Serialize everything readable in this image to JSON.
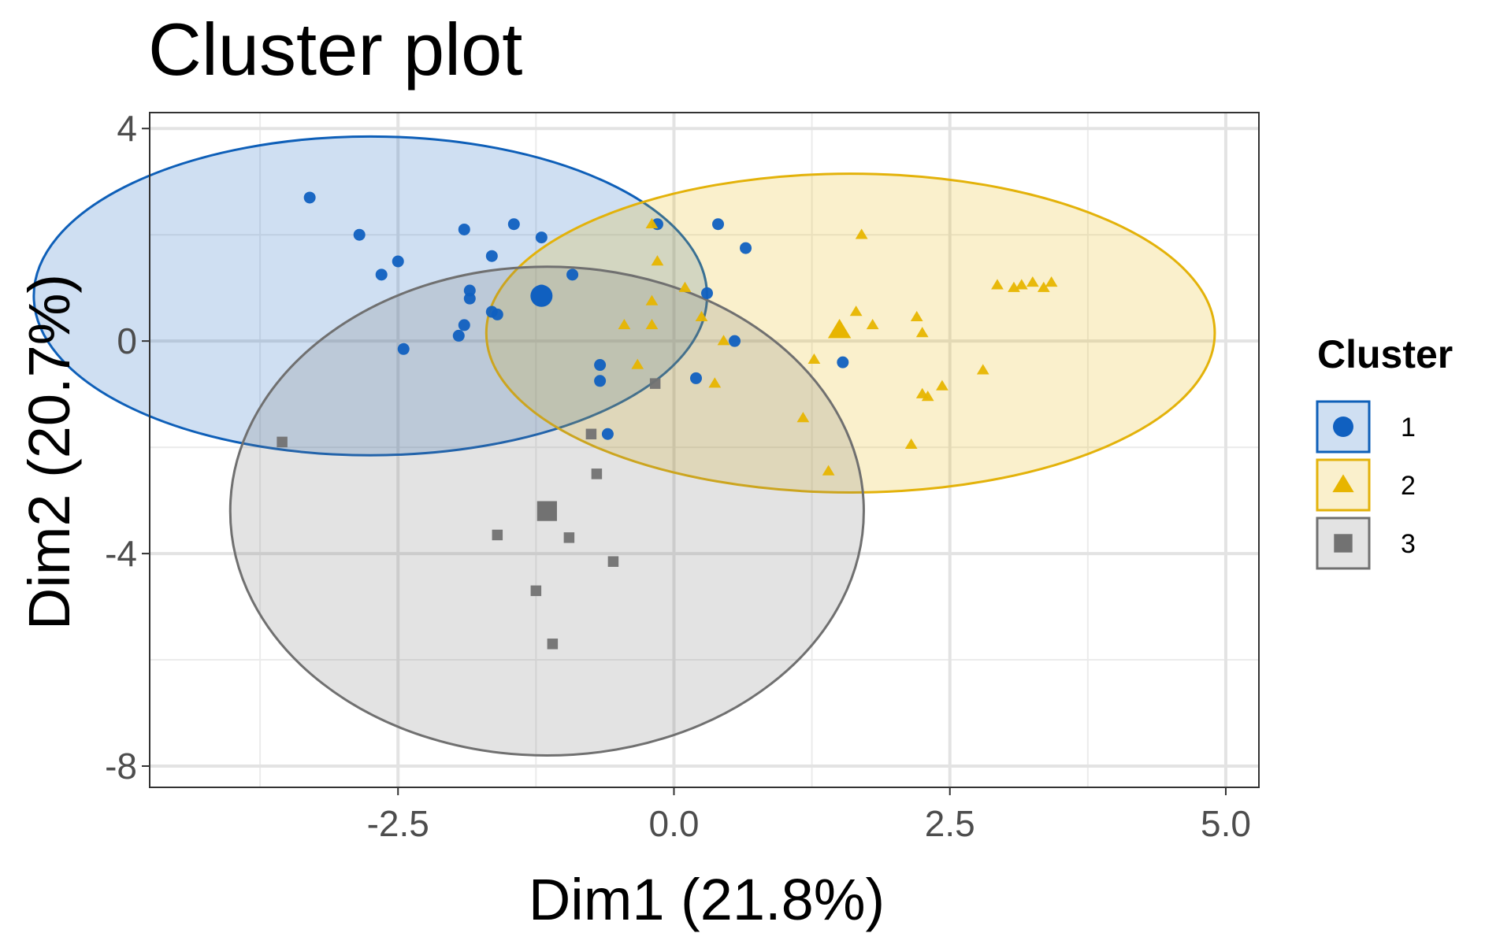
{
  "chart_data": {
    "type": "scatter",
    "title": "Cluster plot",
    "xlabel": "Dim1 (21.8%)",
    "ylabel": "Dim2 (20.7%)",
    "xlim": [
      -4.75,
      5.3
    ],
    "ylim": [
      -8.4,
      4.3
    ],
    "x_ticks": [
      -2.5,
      0.0,
      2.5,
      5.0
    ],
    "x_tick_labels": [
      "-2.5",
      "0.0",
      "2.5",
      "5.0"
    ],
    "y_ticks": [
      -8,
      -4,
      0,
      4
    ],
    "y_tick_labels": [
      "-8",
      "-4",
      "0",
      "4"
    ],
    "grid": true,
    "legend": {
      "title": "Cluster",
      "position": "right"
    },
    "series": [
      {
        "name": "1",
        "shape": "circle",
        "color": "#0E5FB8",
        "fill": "#1060C0",
        "center": [
          -1.2,
          0.85
        ],
        "ellipse": {
          "cx": -2.75,
          "cy": 0.85,
          "rx": 3.05,
          "ry": 3.0
        },
        "points": [
          [
            -3.3,
            2.7
          ],
          [
            -2.85,
            2.0
          ],
          [
            -2.65,
            1.25
          ],
          [
            -2.5,
            1.5
          ],
          [
            -2.45,
            -0.15
          ],
          [
            -1.95,
            0.1
          ],
          [
            -1.9,
            0.3
          ],
          [
            -1.9,
            2.1
          ],
          [
            -1.85,
            0.8
          ],
          [
            -1.85,
            0.95
          ],
          [
            -1.65,
            0.55
          ],
          [
            -1.6,
            0.5
          ],
          [
            -1.65,
            1.6
          ],
          [
            -1.45,
            2.2
          ],
          [
            -1.2,
            1.95
          ],
          [
            -1.2,
            0.95
          ],
          [
            -0.92,
            1.25
          ],
          [
            -0.67,
            -0.45
          ],
          [
            -0.67,
            -0.75
          ],
          [
            -0.6,
            -1.75
          ],
          [
            -0.15,
            2.2
          ],
          [
            0.2,
            -0.7
          ],
          [
            0.3,
            0.9
          ],
          [
            0.4,
            2.2
          ],
          [
            0.55,
            0.0
          ],
          [
            0.65,
            1.75
          ],
          [
            1.53,
            -0.4
          ]
        ]
      },
      {
        "name": "2",
        "shape": "triangle",
        "color": "#E3B20A",
        "fill": "#E7B500",
        "center": [
          1.5,
          0.2
        ],
        "ellipse": {
          "cx": 1.6,
          "cy": 0.15,
          "rx": 3.3,
          "ry": 3.0
        },
        "points": [
          [
            -0.2,
            2.2
          ],
          [
            -0.15,
            1.5
          ],
          [
            -0.2,
            0.75
          ],
          [
            -0.2,
            0.3
          ],
          [
            -0.45,
            0.3
          ],
          [
            -0.33,
            -0.45
          ],
          [
            0.1,
            1.0
          ],
          [
            0.25,
            0.45
          ],
          [
            0.37,
            -0.8
          ],
          [
            0.45,
            0.0
          ],
          [
            1.17,
            -1.45
          ],
          [
            1.27,
            -0.35
          ],
          [
            1.4,
            -2.45
          ],
          [
            1.65,
            0.55
          ],
          [
            1.7,
            2.0
          ],
          [
            1.8,
            0.3
          ],
          [
            2.15,
            -1.95
          ],
          [
            2.2,
            0.45
          ],
          [
            2.25,
            0.15
          ],
          [
            2.25,
            -1.0
          ],
          [
            2.3,
            -1.05
          ],
          [
            2.43,
            -0.85
          ],
          [
            2.8,
            -0.55
          ],
          [
            2.93,
            1.05
          ],
          [
            3.08,
            1.0
          ],
          [
            3.15,
            1.05
          ],
          [
            3.25,
            1.1
          ],
          [
            3.35,
            1.0
          ],
          [
            3.42,
            1.1
          ]
        ]
      },
      {
        "name": "3",
        "shape": "square",
        "color": "#707070",
        "fill": "#727272",
        "center": [
          -1.15,
          -3.2
        ],
        "ellipse": {
          "cx": -1.15,
          "cy": -3.2,
          "rx": 2.87,
          "ry": 4.6
        },
        "points": [
          [
            -3.55,
            -1.9
          ],
          [
            -1.6,
            -3.65
          ],
          [
            -1.25,
            -4.7
          ],
          [
            -1.1,
            -5.7
          ],
          [
            -0.95,
            -3.7
          ],
          [
            -0.75,
            -1.75
          ],
          [
            -0.7,
            -2.5
          ],
          [
            -0.55,
            -4.15
          ],
          [
            -0.17,
            -0.8
          ]
        ]
      }
    ]
  }
}
